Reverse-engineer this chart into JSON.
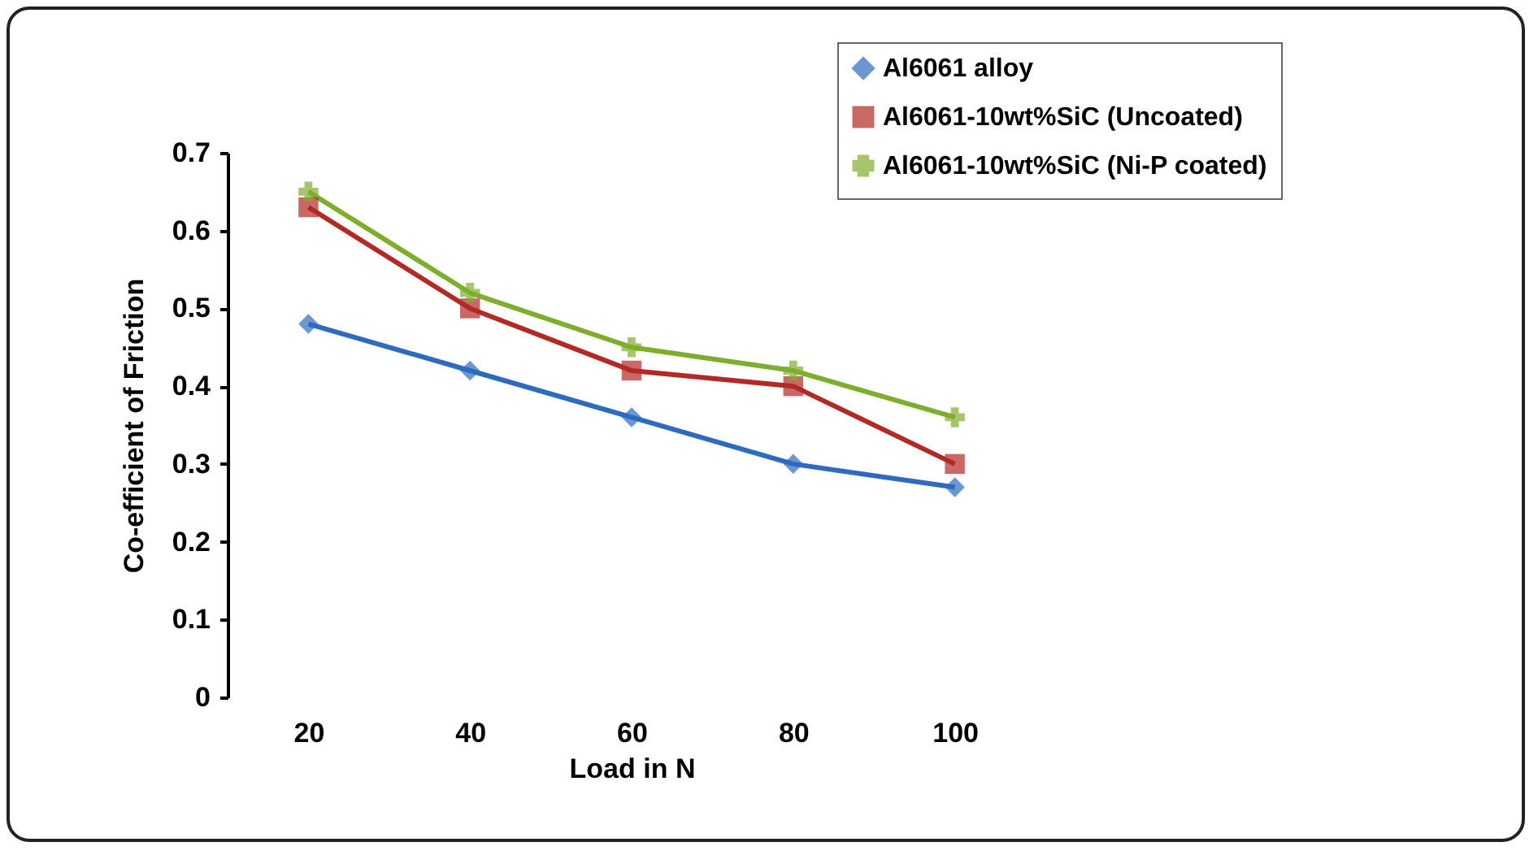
{
  "chart_data": {
    "type": "line",
    "xlabel": "Load in N",
    "ylabel": "Co-efficient of Friction",
    "categories": [
      "20",
      "40",
      "60",
      "80",
      "100"
    ],
    "series": [
      {
        "name": "Al6061 alloy",
        "color": "#2e6bbf",
        "marker": "diamond",
        "values": [
          0.48,
          0.42,
          0.36,
          0.3,
          0.27
        ]
      },
      {
        "name": "Al6061-10wt%SiC (Uncoated)",
        "color": "#b22a26",
        "marker": "square",
        "values": [
          0.63,
          0.5,
          0.42,
          0.4,
          0.3
        ]
      },
      {
        "name": "Al6061-10wt%SiC (Ni-P coated)",
        "color": "#7fae2e",
        "marker": "cross",
        "values": [
          0.65,
          0.52,
          0.45,
          0.42,
          0.36
        ]
      }
    ],
    "ylim": [
      0,
      0.7
    ],
    "yticks": [
      0,
      0.1,
      0.2,
      0.3,
      0.4,
      0.5,
      0.6,
      0.7
    ],
    "grid": false,
    "legend": "top right",
    "line_style": "solid"
  }
}
